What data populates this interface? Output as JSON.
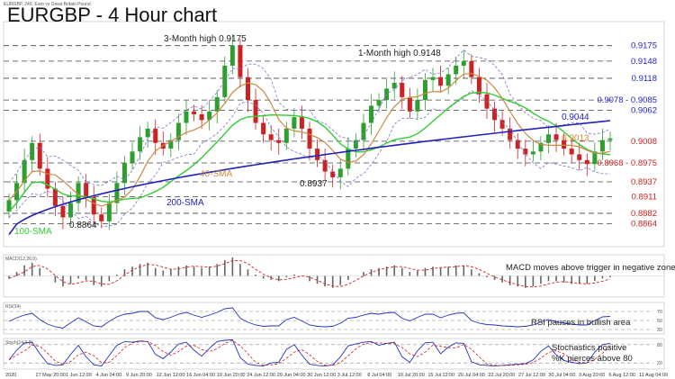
{
  "header": {
    "title": "EURGBP - 4 Hour chart",
    "source": "EURGBP, 240, Euro vs Great Britain Pound"
  },
  "colors": {
    "candle_up": "#2e9e2e",
    "candle_down": "#cc2222",
    "sma100": "#33cc33",
    "sma200": "#2222bb",
    "sma40": "#cc8844",
    "bollinger": "#7777cc",
    "level_blue": "#2222cc",
    "level_red": "#cc2222",
    "level_orange": "#dd8833",
    "grid_dash": "#444444"
  },
  "chart_data": [
    {
      "type": "candlestick",
      "panel": "price",
      "ylim": [
        0.883,
        0.9195
      ],
      "x_ticks": [
        "2020",
        "27 May 20:00",
        "1 Jun 12:00",
        "4 Jun 04:00",
        "9 Jun 20:00",
        "12 Jun 12:00",
        "16 Jun 04:00",
        "19 Jun 20:00",
        "24 Jun 12:00",
        "29 Jun 04:00",
        "30 Jun 12:00",
        "3 Jul 12:00",
        "8 Jul 04:00",
        "10 Jul 20:00",
        "15 Jul 12:00",
        "20 Jul 04:00",
        "22 Jul 20:00",
        "27 Jul 12:00",
        "30 Jul 04:00",
        "3 Aug 20:00",
        "6 Aug 12:00",
        "11 Aug 04:00"
      ],
      "levels": [
        {
          "label": "0.9175",
          "value": 0.9175,
          "color": "#2222cc"
        },
        {
          "label": "0.9148",
          "value": 0.9148,
          "color": "#2222cc"
        },
        {
          "label": "0.9118",
          "value": 0.9118,
          "color": "#2222cc"
        },
        {
          "label": "0.9078 - 0.9085",
          "value": 0.908,
          "color": "#2222cc"
        },
        {
          "label": "0.9062",
          "value": 0.9062,
          "color": "#2222cc"
        },
        {
          "label": "0.9008",
          "value": 0.9008,
          "color": "#cc2222"
        },
        {
          "label": "0.8968 - 0.8975",
          "value": 0.897,
          "color": "#cc2222"
        },
        {
          "label": "0.8937",
          "value": 0.8937,
          "color": "#cc2222"
        },
        {
          "label": "0.8911",
          "value": 0.8911,
          "color": "#cc2222"
        },
        {
          "label": "0.8882",
          "value": 0.8882,
          "color": "#cc2222"
        },
        {
          "label": "0.8864",
          "value": 0.8864,
          "color": "#cc2222"
        }
      ],
      "current_values": [
        {
          "label": "0.9044",
          "value": 0.9044,
          "color": "#2222cc"
        },
        {
          "label": "0.9013",
          "value": 0.9013,
          "color": "#dd8833"
        }
      ],
      "annotations": [
        {
          "text": "3-Month high 0.9175",
          "value": 0.9175
        },
        {
          "text": "1-Month high 0.9148",
          "value": 0.9148
        },
        {
          "text": "0.8937",
          "value": 0.8937
        },
        {
          "text": "0.8864",
          "value": 0.8864
        },
        {
          "text": "40-SMA",
          "color": "#cc8844"
        },
        {
          "text": "200-SMA",
          "color": "#2222bb"
        },
        {
          "text": "100-SMA",
          "color": "#33cc33"
        }
      ],
      "closes": [
        0.8905,
        0.8935,
        0.8975,
        0.9005,
        0.896,
        0.8925,
        0.8895,
        0.8875,
        0.89,
        0.8935,
        0.891,
        0.888,
        0.8868,
        0.89,
        0.8935,
        0.897,
        0.899,
        0.9015,
        0.903,
        0.9005,
        0.8995,
        0.901,
        0.904,
        0.906,
        0.9055,
        0.9045,
        0.906,
        0.9085,
        0.914,
        0.9175,
        0.912,
        0.908,
        0.904,
        0.902,
        0.901,
        0.9005,
        0.903,
        0.905,
        0.903,
        0.8995,
        0.8975,
        0.8955,
        0.8945,
        0.896,
        0.8995,
        0.901,
        0.904,
        0.907,
        0.908,
        0.91,
        0.911,
        0.9085,
        0.906,
        0.908,
        0.9115,
        0.912,
        0.9105,
        0.9125,
        0.914,
        0.9148,
        0.912,
        0.909,
        0.9065,
        0.9045,
        0.903,
        0.901,
        0.8995,
        0.8985,
        0.899,
        0.9005,
        0.902,
        0.901,
        0.8995,
        0.8985,
        0.8975,
        0.8968,
        0.899,
        0.901,
        0.9013
      ]
    },
    {
      "type": "line",
      "panel": "MACD",
      "name": "MACD(12,26,9)",
      "annotation": "MACD moves above trigger in negative zone",
      "values": [
        -0.2,
        0.3,
        0.8,
        1.0,
        0.6,
        0.0,
        -0.5,
        -0.8,
        -0.6,
        -0.2,
        -0.3,
        -0.7,
        -0.8,
        -0.4,
        0.1,
        0.5,
        0.7,
        0.9,
        1.0,
        0.6,
        0.4,
        0.5,
        0.7,
        0.8,
        0.7,
        0.6,
        0.7,
        0.9,
        1.2,
        1.4,
        0.9,
        0.5,
        0.1,
        -0.2,
        -0.3,
        -0.4,
        -0.1,
        0.1,
        0.0,
        -0.4,
        -0.6,
        -0.8,
        -0.9,
        -0.7,
        -0.3,
        0.0,
        0.3,
        0.5,
        0.6,
        0.7,
        0.8,
        0.6,
        0.3,
        0.4,
        0.6,
        0.7,
        0.6,
        0.7,
        0.8,
        0.8,
        0.5,
        0.2,
        -0.1,
        -0.3,
        -0.5,
        -0.7,
        -0.8,
        -0.9,
        -0.8,
        -0.6,
        -0.4,
        -0.4,
        -0.5,
        -0.6,
        -0.6,
        -0.6,
        -0.4,
        -0.2,
        -0.1
      ]
    },
    {
      "type": "line",
      "panel": "RSI",
      "name": "RSI(14)",
      "annotation": "RSI pauses in bullish area",
      "y_ticks": [
        "70",
        "50",
        "30"
      ],
      "values": [
        48,
        56,
        62,
        66,
        52,
        42,
        36,
        33,
        45,
        56,
        47,
        38,
        36,
        48,
        58,
        64,
        66,
        70,
        70,
        56,
        52,
        57,
        64,
        68,
        62,
        57,
        62,
        68,
        76,
        78,
        55,
        46,
        40,
        37,
        38,
        38,
        52,
        57,
        49,
        40,
        37,
        36,
        37,
        44,
        55,
        57,
        62,
        66,
        64,
        67,
        68,
        55,
        49,
        57,
        64,
        64,
        56,
        62,
        66,
        67,
        50,
        44,
        41,
        40,
        38,
        37,
        36,
        37,
        40,
        47,
        52,
        47,
        44,
        42,
        40,
        40,
        50,
        58,
        59
      ]
    },
    {
      "type": "line",
      "panel": "Stochastics",
      "name": "Stoch(14,3,3)",
      "annotation": "Stochastics positive\n%K pierces above 80",
      "y_ticks": [
        "80",
        "20"
      ],
      "values": [
        30,
        62,
        86,
        88,
        50,
        18,
        12,
        14,
        48,
        78,
        40,
        14,
        10,
        44,
        78,
        90,
        88,
        92,
        90,
        48,
        34,
        56,
        82,
        88,
        62,
        42,
        68,
        90,
        94,
        96,
        38,
        16,
        12,
        10,
        20,
        22,
        64,
        80,
        46,
        16,
        12,
        10,
        14,
        40,
        76,
        82,
        88,
        90,
        78,
        84,
        88,
        40,
        22,
        60,
        86,
        88,
        50,
        72,
        86,
        84,
        24,
        14,
        12,
        10,
        12,
        14,
        16,
        18,
        30,
        58,
        76,
        46,
        28,
        22,
        18,
        20,
        56,
        80,
        84
      ]
    }
  ]
}
